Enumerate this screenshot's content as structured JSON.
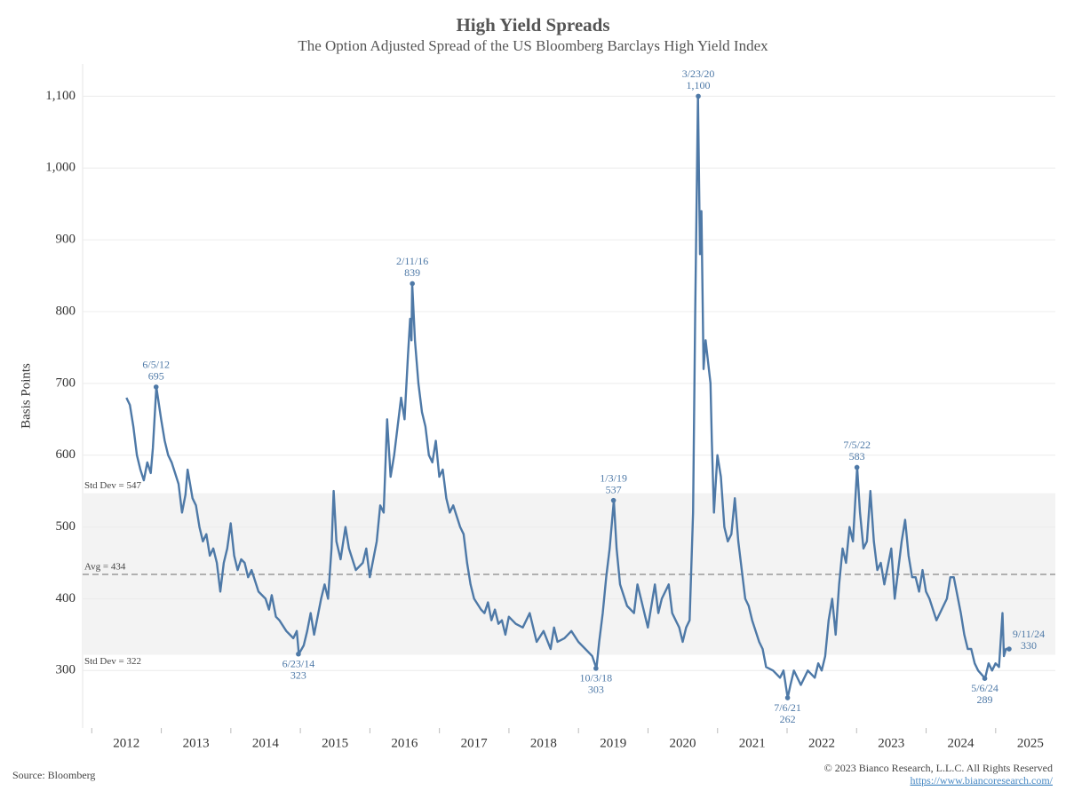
{
  "chart_data": {
    "type": "line",
    "title": "High Yield Spreads",
    "subtitle": "The Option Adjusted Spread of the US Bloomberg Barclays High Yield Index",
    "y_label": "Basis Points",
    "source": "Source: Bloomberg",
    "copyright": "© 2023 Bianco Research, L.L.C. All Rights Reserved",
    "url": "https://www.biancoresearch.com/",
    "color": "#4e79a7",
    "grid": true,
    "xlim": [
      2011.37,
      2025.36
    ],
    "xticks": [
      2012,
      2013,
      2014,
      2015,
      2016,
      2017,
      2018,
      2019,
      2020,
      2021,
      2022,
      2023,
      2024,
      2025
    ],
    "ylim": [
      220,
      1145
    ],
    "yticks": [
      300,
      400,
      500,
      600,
      700,
      800,
      900,
      {
        "value": 1000,
        "label": "1,000"
      },
      {
        "value": 1100,
        "label": "1,100"
      }
    ],
    "reference_lines": [
      {
        "value": 547,
        "label": "Std Dev = 547"
      },
      {
        "value": 434,
        "label": "Avg = 434"
      },
      {
        "value": 322,
        "label": "Std Dev = 322"
      }
    ],
    "annotations": [
      {
        "date": "6/5/12",
        "value": 695
      },
      {
        "date": "6/23/14",
        "value": 323
      },
      {
        "date": "2/11/16",
        "value": 839
      },
      {
        "date": "10/3/18",
        "value": 303
      },
      {
        "date": "1/3/19",
        "value": 537
      },
      {
        "date": "3/23/20",
        "value": 1100,
        "value_label": "1,100"
      },
      {
        "date": "7/6/21",
        "value": 262
      },
      {
        "date": "7/5/22",
        "value": 583
      },
      {
        "date": "5/6/24",
        "value": 289
      },
      {
        "date": "9/11/24",
        "value": 330
      }
    ],
    "x": [
      2012.0,
      2012.05,
      2012.1,
      2012.15,
      2012.2,
      2012.25,
      2012.3,
      2012.35,
      2012.38,
      2012.43,
      2012.5,
      2012.55,
      2012.6,
      2012.65,
      2012.7,
      2012.75,
      2012.8,
      2012.85,
      2012.88,
      2012.95,
      2013.0,
      2013.05,
      2013.1,
      2013.15,
      2013.2,
      2013.25,
      2013.3,
      2013.35,
      2013.4,
      2013.45,
      2013.5,
      2013.55,
      2013.6,
      2013.65,
      2013.7,
      2013.75,
      2013.8,
      2013.9,
      2014.0,
      2014.05,
      2014.09,
      2014.15,
      2014.2,
      2014.3,
      2014.4,
      2014.45,
      2014.48,
      2014.55,
      2014.6,
      2014.65,
      2014.7,
      2014.8,
      2014.85,
      2014.9,
      2014.95,
      2014.98,
      2015.02,
      2015.08,
      2015.15,
      2015.2,
      2015.3,
      2015.4,
      2015.45,
      2015.5,
      2015.6,
      2015.65,
      2015.7,
      2015.75,
      2015.8,
      2015.85,
      2015.9,
      2015.95,
      2016.0,
      2016.05,
      2016.08,
      2016.1,
      2016.11,
      2016.15,
      2016.2,
      2016.25,
      2016.3,
      2016.35,
      2016.4,
      2016.45,
      2016.5,
      2016.55,
      2016.6,
      2016.65,
      2016.7,
      2016.8,
      2016.85,
      2016.9,
      2016.95,
      2017.0,
      2017.1,
      2017.15,
      2017.2,
      2017.25,
      2017.3,
      2017.35,
      2017.4,
      2017.45,
      2017.5,
      2017.6,
      2017.7,
      2017.8,
      2017.85,
      2017.9,
      2018.0,
      2018.1,
      2018.15,
      2018.2,
      2018.3,
      2018.4,
      2018.5,
      2018.6,
      2018.7,
      2018.76,
      2018.8,
      2018.85,
      2018.9,
      2018.95,
      2019.01,
      2019.05,
      2019.1,
      2019.2,
      2019.3,
      2019.35,
      2019.4,
      2019.45,
      2019.5,
      2019.6,
      2019.65,
      2019.7,
      2019.8,
      2019.85,
      2019.9,
      2019.95,
      2020.0,
      2020.05,
      2020.1,
      2020.15,
      2020.18,
      2020.22,
      2020.25,
      2020.27,
      2020.3,
      2020.33,
      2020.4,
      2020.42,
      2020.45,
      2020.5,
      2020.55,
      2020.6,
      2020.65,
      2020.7,
      2020.75,
      2020.8,
      2020.85,
      2020.9,
      2020.95,
      2021.0,
      2021.1,
      2021.15,
      2021.2,
      2021.3,
      2021.4,
      2021.45,
      2021.51,
      2021.55,
      2021.6,
      2021.65,
      2021.7,
      2021.8,
      2021.9,
      2021.95,
      2022.0,
      2022.05,
      2022.1,
      2022.15,
      2022.2,
      2022.25,
      2022.3,
      2022.35,
      2022.4,
      2022.45,
      2022.51,
      2022.55,
      2022.6,
      2022.65,
      2022.7,
      2022.75,
      2022.8,
      2022.85,
      2022.9,
      2023.0,
      2023.05,
      2023.1,
      2023.15,
      2023.2,
      2023.25,
      2023.3,
      2023.35,
      2023.4,
      2023.45,
      2023.5,
      2023.55,
      2023.65,
      2023.7,
      2023.8,
      2023.85,
      2023.9,
      2024.0,
      2024.05,
      2024.1,
      2024.15,
      2024.2,
      2024.25,
      2024.35,
      2024.4,
      2024.45,
      2024.5,
      2024.55,
      2024.6,
      2024.62,
      2024.65,
      2024.7
    ],
    "values": [
      680,
      670,
      640,
      600,
      580,
      565,
      590,
      575,
      610,
      695,
      650,
      620,
      600,
      590,
      575,
      560,
      520,
      545,
      580,
      540,
      530,
      500,
      480,
      490,
      460,
      470,
      450,
      410,
      450,
      470,
      505,
      460,
      440,
      455,
      450,
      430,
      440,
      410,
      400,
      385,
      405,
      375,
      370,
      355,
      345,
      355,
      323,
      335,
      355,
      380,
      350,
      400,
      420,
      400,
      470,
      550,
      480,
      455,
      500,
      470,
      440,
      450,
      470,
      430,
      480,
      530,
      520,
      650,
      570,
      600,
      640,
      680,
      650,
      740,
      790,
      760,
      839,
      760,
      700,
      660,
      640,
      600,
      590,
      620,
      570,
      580,
      540,
      520,
      530,
      500,
      490,
      450,
      420,
      400,
      385,
      380,
      395,
      370,
      385,
      365,
      370,
      350,
      375,
      365,
      360,
      380,
      360,
      340,
      355,
      330,
      360,
      340,
      345,
      355,
      340,
      330,
      320,
      303,
      340,
      380,
      430,
      470,
      537,
      470,
      420,
      390,
      380,
      420,
      400,
      380,
      360,
      420,
      380,
      400,
      420,
      380,
      370,
      360,
      340,
      360,
      370,
      520,
      800,
      1100,
      880,
      940,
      720,
      760,
      700,
      620,
      520,
      600,
      570,
      500,
      480,
      490,
      540,
      480,
      440,
      400,
      390,
      370,
      340,
      330,
      305,
      300,
      290,
      300,
      262,
      280,
      300,
      290,
      280,
      300,
      290,
      310,
      300,
      320,
      370,
      400,
      350,
      420,
      470,
      450,
      500,
      480,
      583,
      520,
      470,
      480,
      550,
      480,
      440,
      450,
      420,
      470,
      400,
      440,
      480,
      510,
      460,
      430,
      430,
      410,
      440,
      410,
      400,
      370,
      380,
      400,
      430,
      430,
      380,
      350,
      330,
      330,
      310,
      300,
      289,
      310,
      300,
      310,
      305,
      380,
      320,
      330,
      330
    ]
  }
}
